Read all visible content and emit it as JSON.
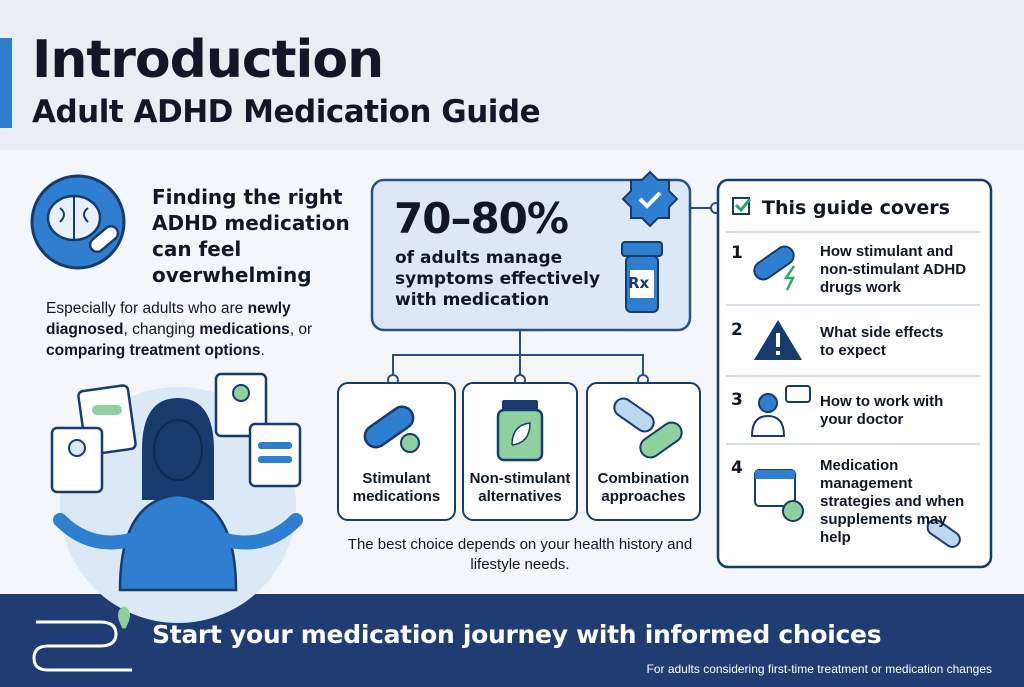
{
  "header": {
    "title": "Introduction",
    "subtitle": "Adult ADHD Medication Guide"
  },
  "intro": {
    "heading": "Finding the right ADHD medication can feel overwhelming",
    "body": [
      "Especially for adults who are ",
      "newly diagnosed",
      ", changing ",
      "medications",
      ",",
      " or ",
      "comparing treatment options",
      "."
    ]
  },
  "stat": {
    "value": "70–80%",
    "text": "of adults manage symptoms effectively with medication",
    "bottle_label": "Rx"
  },
  "options": [
    "Stimulant medications",
    "Non-stimulant alternatives",
    "Combination approaches"
  ],
  "note": "The best choice depends on your health history and lifestyle needs.",
  "covers": {
    "title": "This guide covers",
    "items": [
      {
        "number": "1",
        "text": "How stimulant and non-stimulant ADHD drugs work"
      },
      {
        "number": "2",
        "text": "What side effects to expect"
      },
      {
        "number": "3",
        "text": "How to work with your doctor"
      },
      {
        "number": "4",
        "text": "Medication management strategies and when supplements may help"
      }
    ]
  },
  "footer": {
    "title": "Start your medication journey with informed choices",
    "subtitle": "For adults considering first-time treatment or medication changes"
  }
}
